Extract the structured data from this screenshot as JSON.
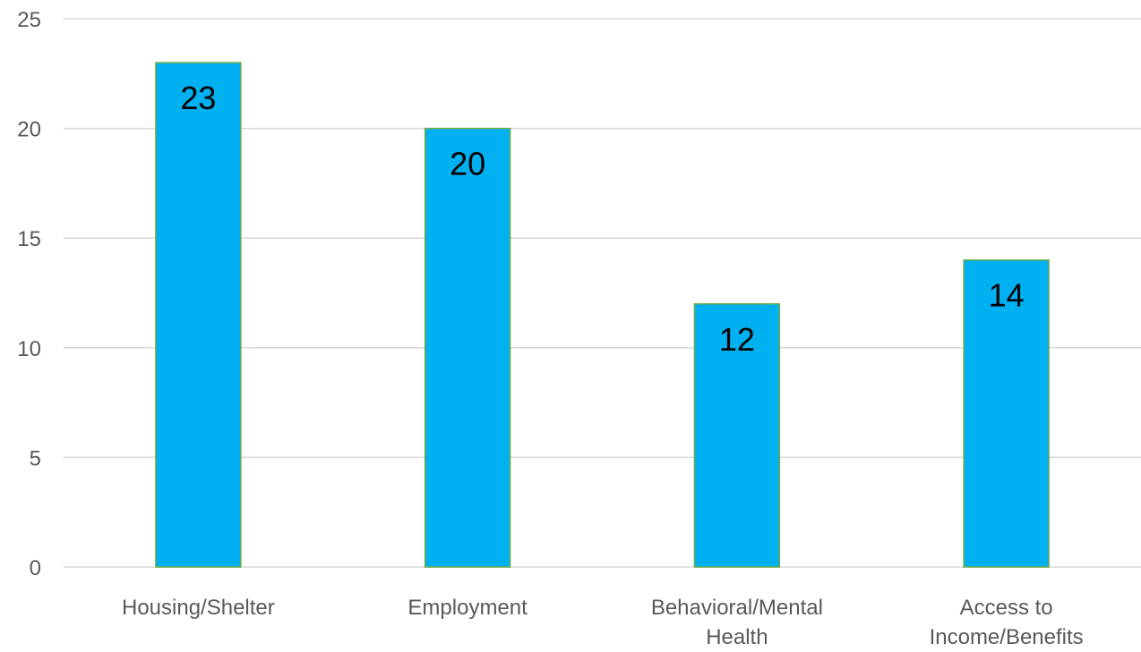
{
  "chart_data": {
    "type": "bar",
    "categories": [
      "Housing/Shelter",
      "Employment",
      "Behavioral/Mental Health",
      "Access to Income/Benefits"
    ],
    "category_lines": [
      [
        "Housing/Shelter"
      ],
      [
        "Employment"
      ],
      [
        "Behavioral/Mental",
        "Health"
      ],
      [
        "Access to",
        "Income/Benefits"
      ]
    ],
    "values": [
      23,
      20,
      12,
      14
    ],
    "data_labels": [
      "23",
      "20",
      "12",
      "14"
    ],
    "title": "",
    "xlabel": "",
    "ylabel": "",
    "ylim": [
      0,
      25
    ],
    "yticks": [
      0,
      5,
      10,
      15,
      20,
      25
    ],
    "grid": true,
    "legend": "none",
    "colors": {
      "bar_fill": "#00b0f0",
      "bar_edge": "#70ad47",
      "grid": "#d9d9d9",
      "tick_text": "#595959",
      "label_text": "#000000"
    }
  }
}
